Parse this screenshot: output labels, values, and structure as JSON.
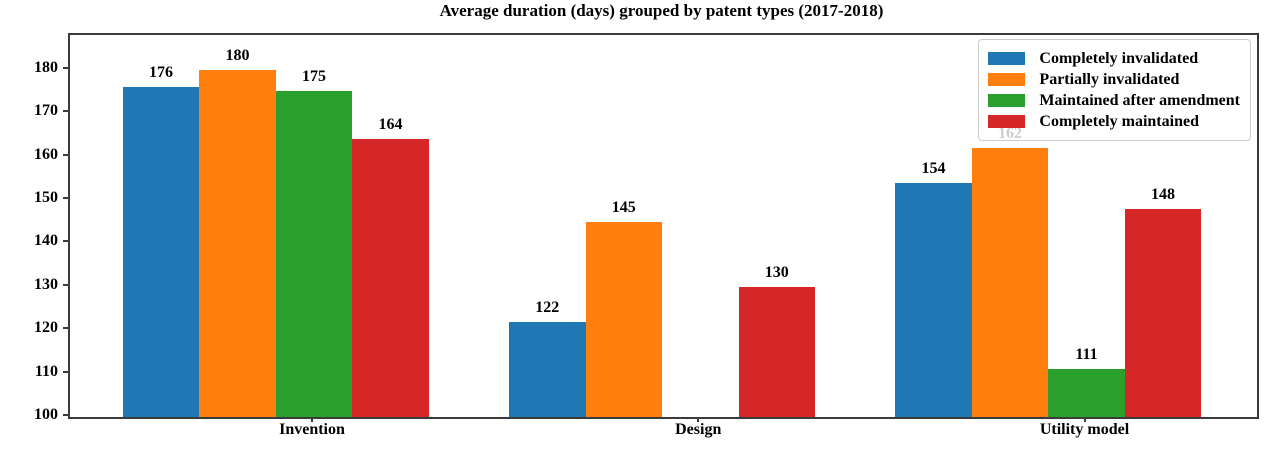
{
  "chart_data": {
    "type": "bar",
    "title": "Average duration (days) grouped by patent types (2017-2018)",
    "categories": [
      "Invention",
      "Design",
      "Utility model"
    ],
    "series": [
      {
        "name": "Completely invalidated",
        "color": "#1f77b4",
        "values": [
          176,
          122,
          154
        ]
      },
      {
        "name": "Partially invalidated",
        "color": "#ff7f0e",
        "values": [
          180,
          145,
          162
        ]
      },
      {
        "name": "Maintained after amendment",
        "color": "#2ca02c",
        "values": [
          175,
          null,
          111
        ]
      },
      {
        "name": "Completely maintained",
        "color": "#d62728",
        "values": [
          164,
          130,
          148
        ]
      }
    ],
    "xlabel": "",
    "ylabel": "",
    "ylim": [
      100,
      188
    ],
    "yticks": [
      100,
      110,
      120,
      130,
      140,
      150,
      160,
      170,
      180
    ],
    "grid": false,
    "legend_position": "upper right",
    "bar_value_labels": true
  }
}
